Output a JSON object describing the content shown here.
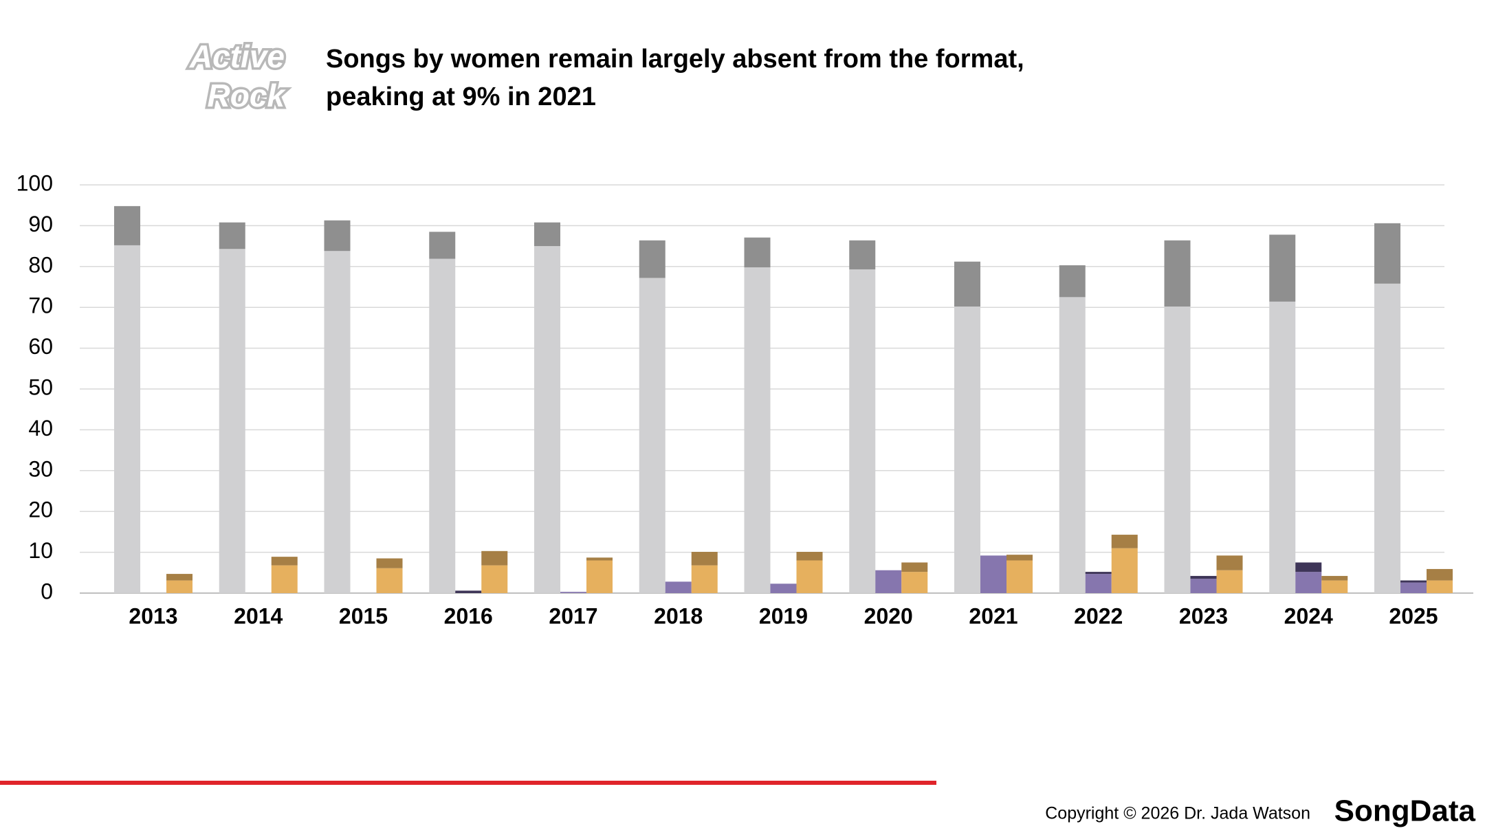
{
  "badge": [
    "Active",
    "Rock"
  ],
  "footer": {
    "copyright": "Copyright © 2026 Dr. Jada Watson",
    "brand": "SongData"
  },
  "chart_data": {
    "type": "bar",
    "stacked": true,
    "title": [
      "Songs by women remain largely absent from the format,",
      "peaking at 9% in 2021"
    ],
    "categories": [
      "2013",
      "2014",
      "2015",
      "2016",
      "2017",
      "2018",
      "2019",
      "2020",
      "2021",
      "2022",
      "2023",
      "2024",
      "2025"
    ],
    "series": [
      {
        "stack": 0,
        "color": "#d0d0d2",
        "values": [
          85.2,
          84.3,
          83.8,
          81.9,
          85.0,
          77.2,
          79.8,
          79.3,
          70.2,
          72.5,
          70.2,
          71.4,
          75.8
        ]
      },
      {
        "stack": 0,
        "color": "#8f8f8f",
        "values": [
          9.6,
          6.5,
          7.5,
          6.6,
          5.8,
          9.2,
          7.3,
          7.1,
          11.0,
          7.8,
          16.2,
          16.4,
          14.8
        ]
      },
      {
        "stack": 1,
        "color": "#8676ae",
        "values": [
          0,
          0,
          0,
          0,
          0.3,
          2.8,
          2.3,
          5.6,
          9.2,
          4.7,
          3.5,
          5.2,
          2.6
        ]
      },
      {
        "stack": 1,
        "color": "#3e3558",
        "values": [
          0,
          0,
          0,
          0.6,
          0,
          0,
          0,
          0,
          0,
          0.5,
          0.7,
          2.3,
          0.5
        ]
      },
      {
        "stack": 2,
        "color": "#e6b05e",
        "values": [
          3.1,
          6.8,
          6.1,
          6.8,
          8.0,
          6.8,
          8.0,
          5.2,
          8.0,
          11.0,
          5.6,
          3.1,
          3.1
        ]
      },
      {
        "stack": 2,
        "color": "#a67f45",
        "values": [
          1.6,
          2.1,
          2.4,
          3.5,
          0.7,
          3.3,
          2.1,
          2.3,
          1.4,
          3.3,
          3.6,
          1.1,
          2.8
        ]
      }
    ],
    "ylim": [
      0,
      100
    ],
    "yticks": [
      0,
      10,
      20,
      30,
      40,
      50,
      60,
      70,
      80,
      90,
      100
    ],
    "grid": true
  }
}
